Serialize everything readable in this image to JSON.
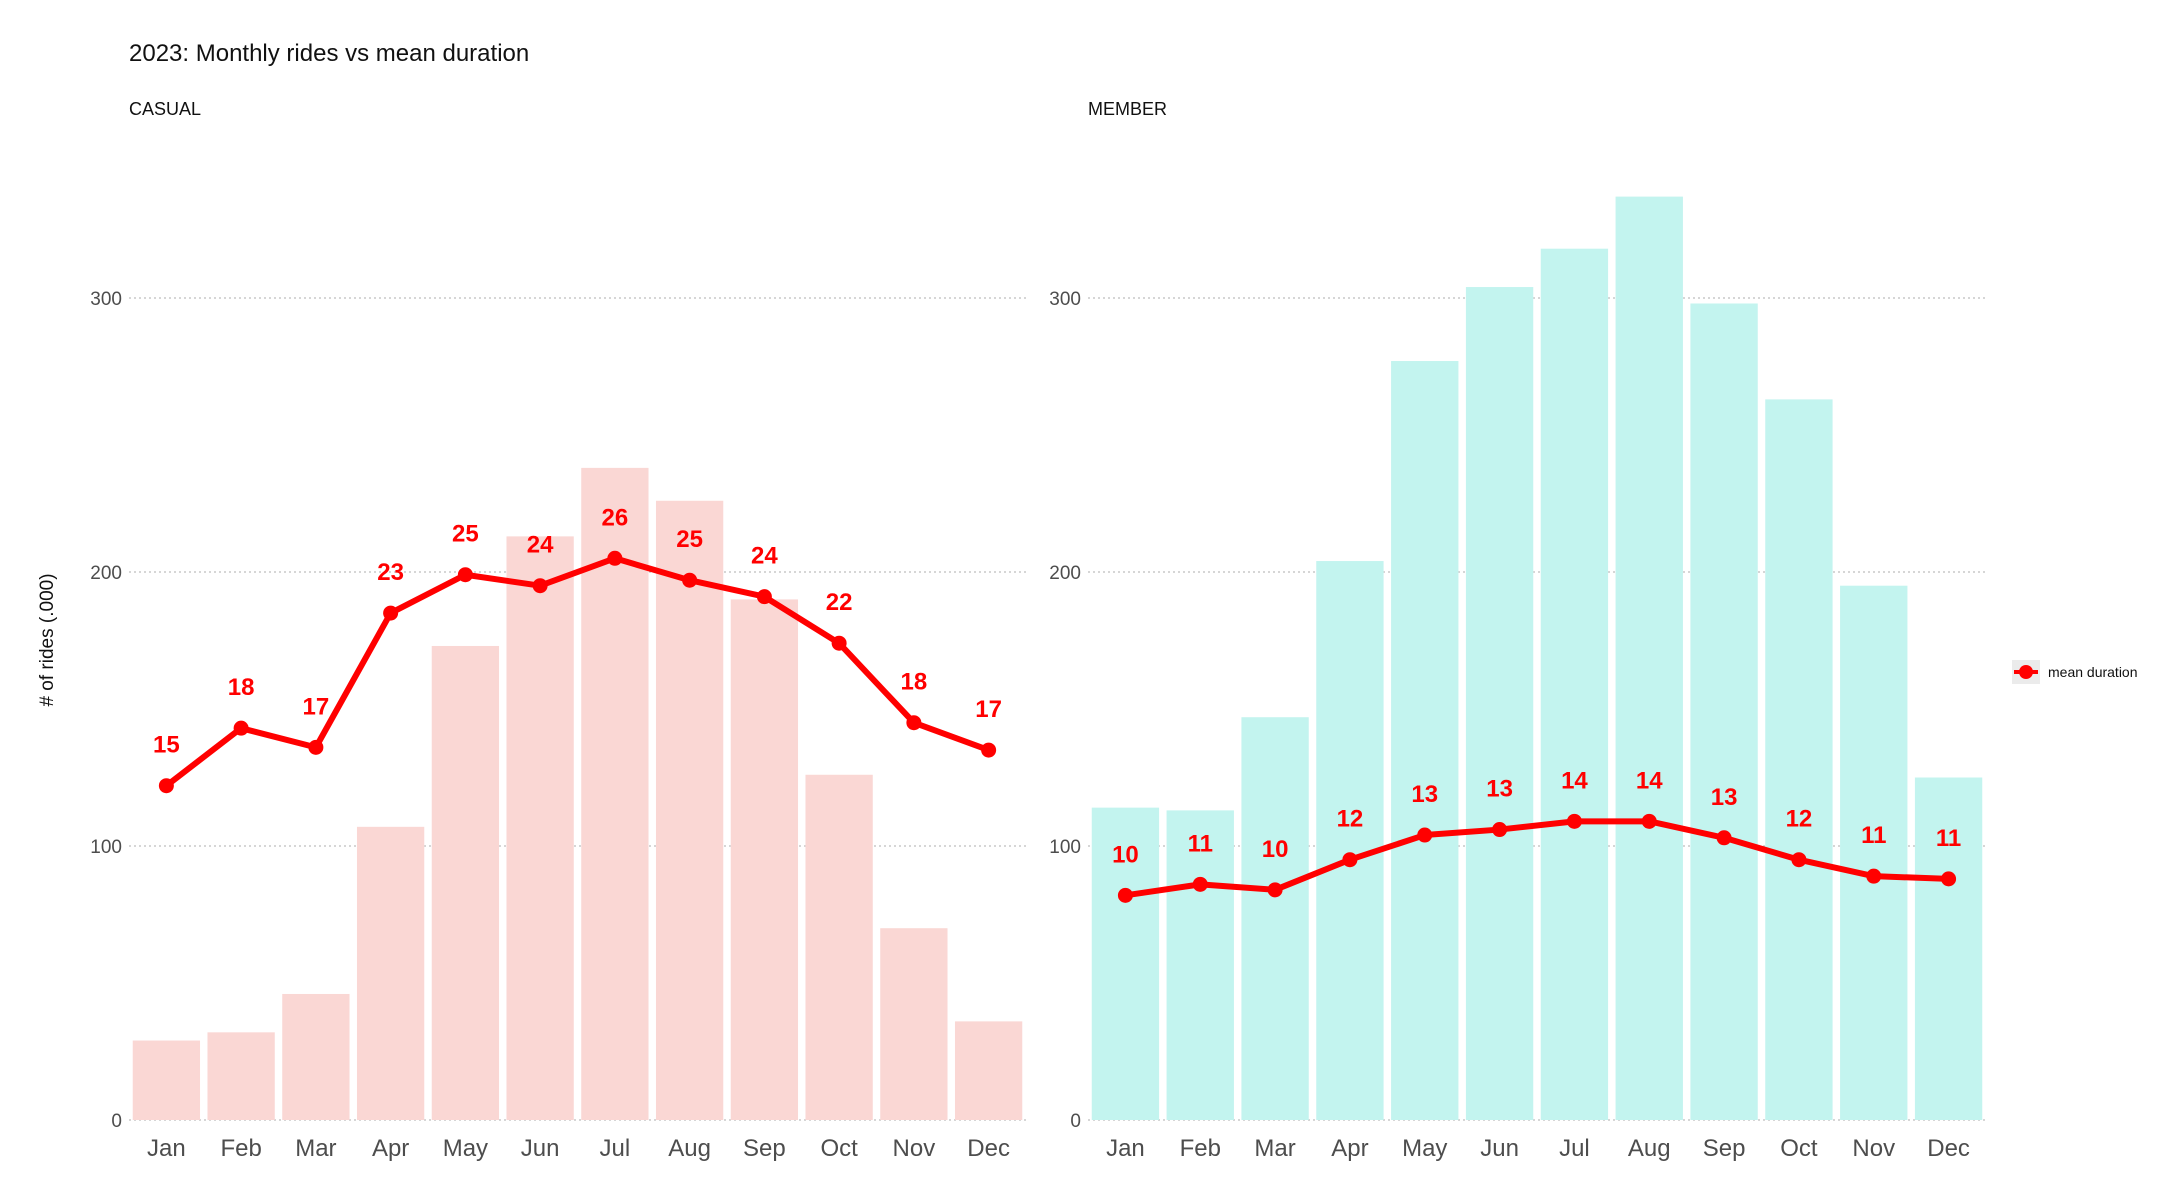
{
  "title": "2023: Monthly rides vs mean duration",
  "y_axis_title": "# of rides (.000)",
  "legend": {
    "label": "mean duration",
    "color": "#ff0000"
  },
  "chart_data": [
    {
      "type": "bar",
      "facet": "CASUAL",
      "categories": [
        "Jan",
        "Feb",
        "Mar",
        "Apr",
        "May",
        "Jun",
        "Jul",
        "Aug",
        "Sep",
        "Oct",
        "Nov",
        "Dec"
      ],
      "values": [
        29,
        32,
        46,
        107,
        173,
        213,
        238,
        226,
        190,
        126,
        70,
        36
      ],
      "bar_color": "#fad7d4",
      "ylim": [
        0,
        340
      ],
      "yticks": [
        0,
        100,
        200,
        300
      ],
      "grid": "horizontal dotted",
      "line_series": {
        "name": "mean duration",
        "color": "#ff0000",
        "values": [
          15,
          18,
          17,
          23,
          25,
          24,
          26,
          25,
          24,
          22,
          18,
          17
        ],
        "y_plot": [
          122,
          143,
          136,
          185,
          199,
          195,
          205,
          197,
          191,
          174,
          145,
          135
        ]
      }
    },
    {
      "type": "bar",
      "facet": "MEMBER",
      "categories": [
        "Jan",
        "Feb",
        "Mar",
        "Apr",
        "May",
        "Jun",
        "Jul",
        "Aug",
        "Sep",
        "Oct",
        "Nov",
        "Dec"
      ],
      "values": [
        114,
        113,
        147,
        204,
        277,
        304,
        318,
        337,
        298,
        263,
        195,
        125
      ],
      "bar_color": "#c3f4ef",
      "ylim": [
        0,
        340
      ],
      "yticks": [
        0,
        100,
        200,
        300
      ],
      "grid": "horizontal dotted",
      "line_series": {
        "name": "mean duration",
        "color": "#ff0000",
        "values": [
          10,
          11,
          10,
          12,
          13,
          13,
          14,
          14,
          13,
          12,
          11,
          11
        ],
        "y_plot": [
          82,
          86,
          84,
          95,
          104,
          106,
          109,
          109,
          103,
          95,
          89,
          88
        ]
      }
    }
  ]
}
